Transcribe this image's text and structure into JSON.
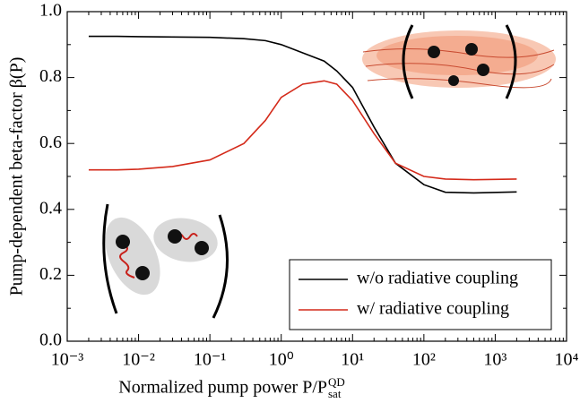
{
  "chart_data": {
    "type": "line",
    "xlabel": "Normalized pump power P/P",
    "xlabel_sup": "QD",
    "xlabel_sub": "sat",
    "ylabel": "Pump-dependent beta-factor β(P)",
    "x": [
      0.002,
      0.005,
      0.01,
      0.03,
      0.1,
      0.3,
      0.6,
      1,
      2,
      4,
      6,
      10,
      20,
      40,
      100,
      200,
      500,
      2000
    ],
    "series": [
      {
        "name": "w/o radiative coupling",
        "color": "#000000",
        "values": [
          0.925,
          0.925,
          0.924,
          0.923,
          0.922,
          0.918,
          0.912,
          0.9,
          0.875,
          0.85,
          0.82,
          0.77,
          0.65,
          0.54,
          0.475,
          0.452,
          0.45,
          0.453
        ]
      },
      {
        "name": "w/ radiative coupling",
        "color": "#d42a1a",
        "values": [
          0.52,
          0.52,
          0.522,
          0.53,
          0.55,
          0.6,
          0.67,
          0.74,
          0.78,
          0.79,
          0.78,
          0.73,
          0.63,
          0.54,
          0.5,
          0.492,
          0.49,
          0.492
        ]
      }
    ],
    "xscale": "log",
    "xlim": [
      0.001,
      10000
    ],
    "xticks": [
      {
        "value": 0.001,
        "label": "10⁻³"
      },
      {
        "value": 0.01,
        "label": "10⁻²"
      },
      {
        "value": 0.1,
        "label": "10⁻¹"
      },
      {
        "value": 1,
        "label": "10⁰"
      },
      {
        "value": 10,
        "label": "10¹"
      },
      {
        "value": 100,
        "label": "10²"
      },
      {
        "value": 1000,
        "label": "10³"
      },
      {
        "value": 10000,
        "label": "10⁴"
      }
    ],
    "ylim": [
      0,
      1
    ],
    "yticks": [
      {
        "value": 0,
        "label": "0.0"
      },
      0.2,
      0.4,
      0.6,
      0.8,
      {
        "value": 1,
        "label": "1.0"
      }
    ],
    "legend": "lower right"
  }
}
